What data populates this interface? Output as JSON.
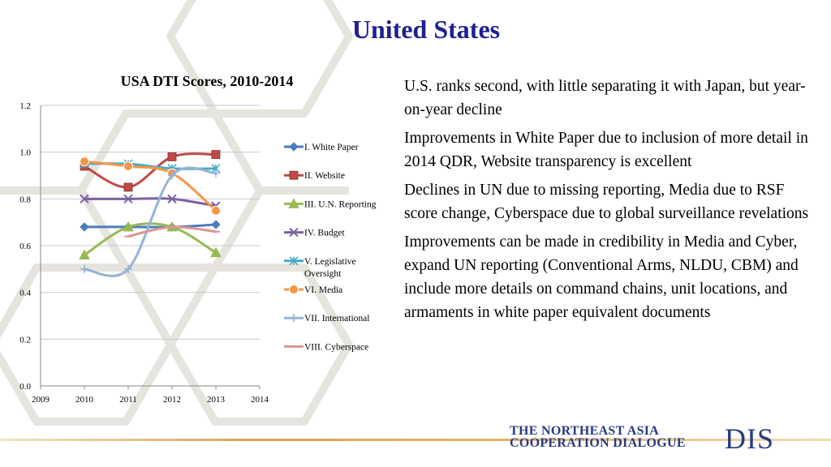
{
  "slide": {
    "title": "United States",
    "bullets": [
      "U.S. ranks second, with little separating it with Japan, but year-on-year decline",
      "Improvements in White Paper due to inclusion of more detail in 2014 QDR, Website transparency is excellent",
      "Declines in UN due to missing reporting, Media due to RSF score change, Cyberspace due to global surveillance revelations",
      "Improvements can be made in credibility in Media and Cyber, expand UN reporting (Conventional Arms, NLDU, CBM) and include more details on command chains, unit locations, and armaments in white paper equivalent documents"
    ]
  },
  "logo": {
    "line1": "THE NORTHEAST ASIA",
    "line2": "COOPERATION DIALOGUE",
    "acronym": "DIS"
  },
  "chart_data": {
    "type": "line",
    "title": "USA DTI Scores, 2010-2014",
    "xlabel": "",
    "ylabel": "",
    "xlim": [
      2009,
      2014
    ],
    "ylim": [
      0,
      1.2
    ],
    "x_ticks": [
      "2009",
      "2010",
      "2011",
      "2012",
      "2013",
      "2014"
    ],
    "y_ticks": [
      "0.0",
      "0.2",
      "0.4",
      "0.6",
      "0.8",
      "1.0",
      "1.2"
    ],
    "grid": "horizontal",
    "legend": "right",
    "series": [
      {
        "name": "I. White Paper",
        "color": "#4a7ebb",
        "marker": "diamond",
        "x": [
          2010,
          2011,
          2012,
          2013
        ],
        "y": [
          0.68,
          0.68,
          0.68,
          0.69
        ]
      },
      {
        "name": "II. Website",
        "color": "#be4b48",
        "marker": "square",
        "x": [
          2010,
          2011,
          2012,
          2013
        ],
        "y": [
          0.94,
          0.85,
          0.98,
          0.99
        ]
      },
      {
        "name": "III. U.N. Reporting",
        "color": "#98b954",
        "marker": "triangle",
        "x": [
          2010,
          2011,
          2012,
          2013
        ],
        "y": [
          0.56,
          0.68,
          0.68,
          0.57
        ]
      },
      {
        "name": "IV. Budget",
        "color": "#7d60a0",
        "marker": "x",
        "x": [
          2010,
          2011,
          2012,
          2013
        ],
        "y": [
          0.8,
          0.8,
          0.8,
          0.77
        ]
      },
      {
        "name": "V. Legislative Oversight",
        "color": "#46aac5",
        "marker": "star",
        "x": [
          2010,
          2011,
          2012,
          2013
        ],
        "y": [
          0.95,
          0.95,
          0.93,
          0.93
        ]
      },
      {
        "name": "VI. Media",
        "color": "#f79646",
        "marker": "circle",
        "x": [
          2010,
          2011,
          2012,
          2013
        ],
        "y": [
          0.96,
          0.94,
          0.91,
          0.75
        ]
      },
      {
        "name": "VII. International",
        "color": "#95b3d7",
        "marker": "plus",
        "x": [
          2010,
          2011,
          2012,
          2013
        ],
        "y": [
          0.5,
          0.5,
          0.9,
          0.91
        ]
      },
      {
        "name": "VIII. Cyberspace",
        "color": "#d99694",
        "marker": "dash",
        "x": [
          2011,
          2012,
          2013
        ],
        "y": [
          0.64,
          0.68,
          0.66
        ]
      }
    ]
  }
}
